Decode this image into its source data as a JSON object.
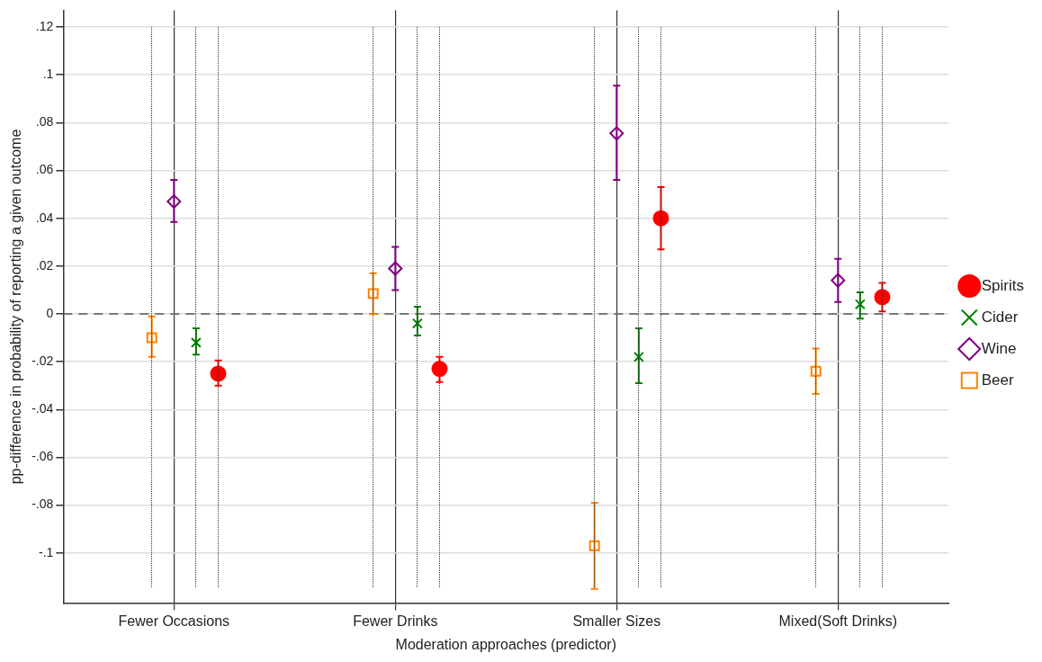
{
  "chart_data": {
    "type": "scatter",
    "xlabel": "Moderation approaches (predictor)",
    "ylabel": "pp-difference in probability of reporting a given outcome",
    "categories": [
      "Fewer Occasions",
      "Fewer Drinks",
      "Smaller Sizes",
      "Mixed(Soft Drinks)"
    ],
    "series": [
      {
        "name": "Spirits",
        "color": "#ff0000",
        "marker": "circle",
        "values": [
          -0.025,
          -0.023,
          0.04,
          0.007
        ],
        "errors": [
          [
            -0.03,
            -0.0195
          ],
          [
            -0.0285,
            -0.018
          ],
          [
            0.027,
            0.053
          ],
          [
            0.001,
            0.013
          ]
        ]
      },
      {
        "name": "Cider",
        "color": "#008000",
        "marker": "cross",
        "values": [
          -0.012,
          -0.004,
          -0.018,
          0.004
        ],
        "errors": [
          [
            -0.017,
            -0.006
          ],
          [
            -0.009,
            0.003
          ],
          [
            -0.029,
            -0.006
          ],
          [
            -0.002,
            0.009
          ]
        ]
      },
      {
        "name": "Wine",
        "color": "#800080",
        "marker": "diamond",
        "values": [
          0.047,
          0.019,
          0.0755,
          0.014
        ],
        "errors": [
          [
            0.0385,
            0.056
          ],
          [
            0.01,
            0.028
          ],
          [
            0.056,
            0.0955
          ],
          [
            0.005,
            0.023
          ]
        ]
      },
      {
        "name": "Beer",
        "color": "#ff8000",
        "marker": "square",
        "values": [
          -0.01,
          0.0085,
          -0.097,
          -0.024
        ],
        "errors": [
          [
            -0.018,
            -0.001
          ],
          [
            0,
            0.017
          ],
          [
            -0.115,
            -0.079
          ],
          [
            -0.0335,
            -0.0145
          ]
        ]
      }
    ],
    "ylim": [
      -0.121,
      0.127
    ],
    "yticks": [
      {
        "value": -0.1,
        "label": "-.1"
      },
      {
        "value": -0.08,
        "label": "-.08"
      },
      {
        "value": -0.06,
        "label": "-.06"
      },
      {
        "value": -0.04,
        "label": "-.04"
      },
      {
        "value": -0.02,
        "label": "-.02"
      },
      0,
      {
        "value": 0.02,
        "label": ".02"
      },
      {
        "value": 0.04,
        "label": ".04"
      },
      {
        "value": 0.06,
        "label": ".06"
      },
      {
        "value": 0.08,
        "label": ".08"
      },
      {
        "value": 0.1,
        "label": ".1"
      },
      {
        "value": 0.12,
        "label": ".12"
      }
    ],
    "ref_lines": [
      {
        "axis": "y",
        "value": 0,
        "color": "#555555",
        "line_style": "dashed"
      }
    ],
    "grid": true,
    "legend": "right"
  }
}
